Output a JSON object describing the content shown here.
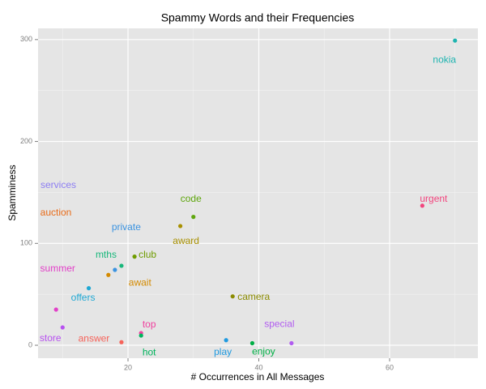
{
  "chart_data": {
    "type": "scatter",
    "title": "Spammy Words and their Frequencies",
    "x_label": "# Occurrences in All Messages",
    "y_label": "Spamminess",
    "xlim": [
      6.25,
      73.5
    ],
    "ylim": [
      -12.7,
      311
    ],
    "xticks": [
      20,
      40,
      60
    ],
    "yticks": [
      0,
      100,
      200,
      300
    ],
    "grid": true,
    "points": [
      {
        "label": "nokia",
        "x": 70,
        "y": 299,
        "color": "#1fb4b0"
      },
      {
        "label": "urgent",
        "x": 65,
        "y": 137,
        "color": "#f2457e"
      },
      {
        "label": "code",
        "x": 30,
        "y": 126,
        "color": "#5fa60e"
      },
      {
        "label": "award",
        "x": 28,
        "y": 117,
        "color": "#a89000"
      },
      {
        "label": "camera",
        "x": 36,
        "y": 48,
        "color": "#8b8b00"
      },
      {
        "label": "club",
        "x": 21,
        "y": 87,
        "color": "#6f9c00"
      },
      {
        "label": "mths",
        "x": 19,
        "y": 78,
        "color": "#18b77b"
      },
      {
        "label": "private",
        "x": 18,
        "y": 74,
        "color": "#3b93e0"
      },
      {
        "label": "await",
        "x": 17,
        "y": 69,
        "color": "#d48a00"
      },
      {
        "label": "offers",
        "x": 14,
        "y": 56,
        "color": "#1fa8d4"
      },
      {
        "label": "summer",
        "x": 9,
        "y": 35,
        "color": "#e240c8"
      },
      {
        "label": "store",
        "x": 10,
        "y": 17.5,
        "color": "#b751f0"
      },
      {
        "label": "top",
        "x": 22,
        "y": 12,
        "color": "#f0409e"
      },
      {
        "label": "hot",
        "x": 22,
        "y": 9.5,
        "color": "#00b35c"
      },
      {
        "label": "answer",
        "x": 19,
        "y": 3,
        "color": "#f6635a"
      },
      {
        "label": "play",
        "x": 35,
        "y": 5,
        "color": "#1f9ae0"
      },
      {
        "label": "enjoy",
        "x": 39,
        "y": 2,
        "color": "#00af45"
      },
      {
        "label": "special",
        "x": 45,
        "y": 2,
        "color": "#b15cf0"
      },
      {
        "label": "services",
        "x": null,
        "y": null,
        "color": "#8c7df2"
      },
      {
        "label": "auction",
        "x": null,
        "y": null,
        "color": "#e86c1a"
      }
    ]
  }
}
